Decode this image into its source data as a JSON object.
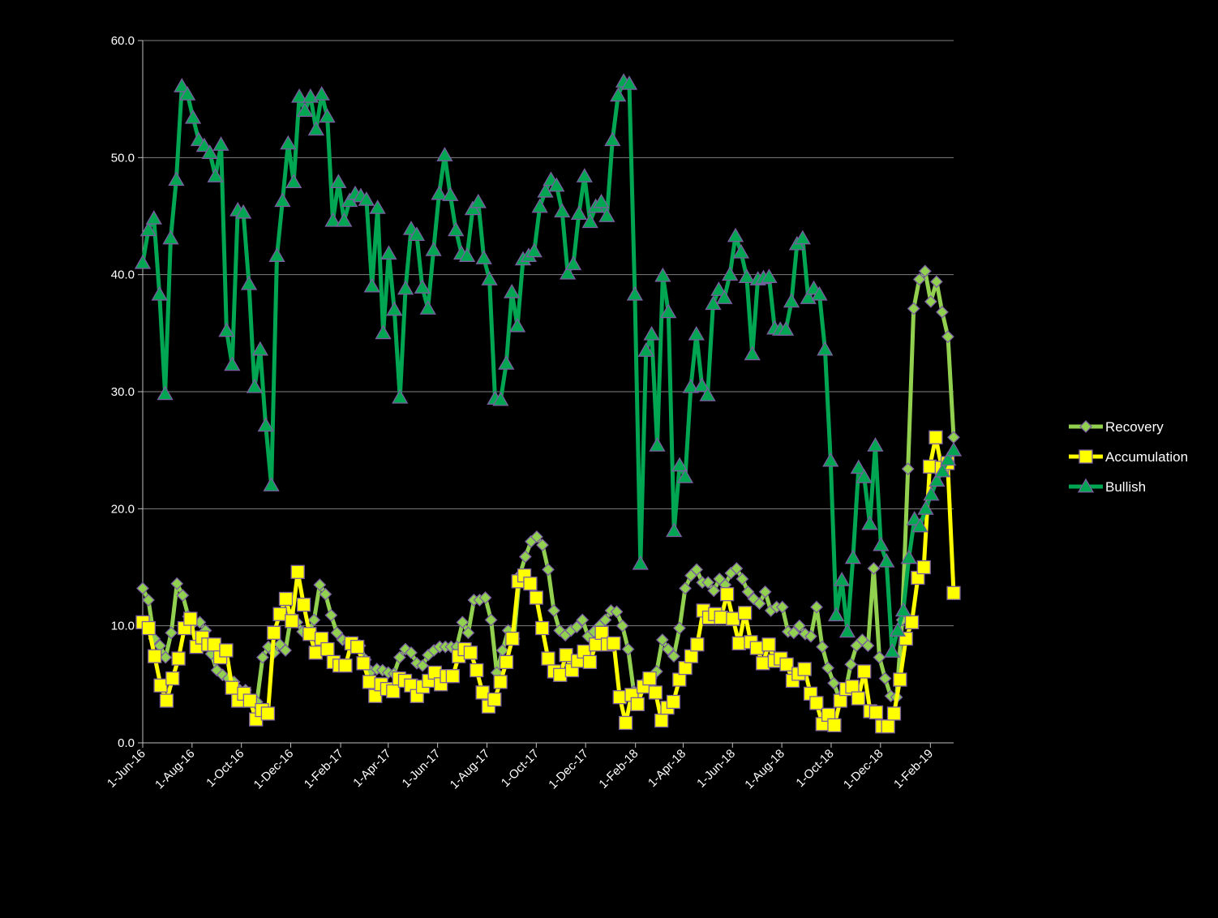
{
  "chart_data": {
    "type": "line",
    "title": "",
    "xlabel": "",
    "ylabel": "",
    "ylim": [
      0,
      60
    ],
    "y_ticks": [
      "0.0",
      "10.0",
      "20.0",
      "30.0",
      "40.0",
      "50.0",
      "60.0"
    ],
    "x_tick_labels": [
      "1-Jun-16",
      "1-Aug-16",
      "1-Oct-16",
      "1-Dec-16",
      "1-Feb-17",
      "1-Apr-17",
      "1-Jun-17",
      "1-Aug-17",
      "1-Oct-17",
      "1-Dec-17",
      "1-Feb-18",
      "1-Apr-18",
      "1-Jun-18",
      "1-Aug-18",
      "1-Oct-18",
      "1-Dec-18",
      "1-Feb-19"
    ],
    "x_tick_weeks": [
      0,
      8.7,
      17.4,
      26.1,
      34.9,
      43.3,
      52.0,
      60.7,
      69.4,
      78.1,
      86.9,
      95.3,
      104.0,
      112.7,
      121.4,
      130.1,
      138.9
    ],
    "x_range_weeks": [
      0,
      143
    ],
    "legend_position": "right",
    "grid": "horizontal",
    "series": [
      {
        "name": "Recovery",
        "color": "#92d050",
        "marker": "diamond",
        "values": [
          13.2,
          12.2,
          8.9,
          8.3,
          7.3,
          9.4,
          13.6,
          12.6,
          10.8,
          10.3,
          10.3,
          9.6,
          7.6,
          6.2,
          5.8,
          5.5,
          5.2,
          4.5,
          4.5,
          3.5,
          3.5,
          7.3,
          8.2,
          7.7,
          8.4,
          7.9,
          10.9,
          10.3,
          9.5,
          9.3,
          10.5,
          13.5,
          12.7,
          10.9,
          9.4,
          8.8,
          8.6,
          8.2,
          8.3,
          7.1,
          6.1,
          6.3,
          6.2,
          6.0,
          5.9,
          7.3,
          8.0,
          7.7,
          6.8,
          6.6,
          7.5,
          7.9,
          8.2,
          8.2,
          8.2,
          8.2,
          10.3,
          9.4,
          12.2,
          12.2,
          12.4,
          10.5,
          6.0,
          7.9,
          9.6,
          8.9,
          14.3,
          15.9,
          17.2,
          17.6,
          16.9,
          14.8,
          11.3,
          9.6,
          9.2,
          9.6,
          9.9,
          10.5,
          9.1,
          9.5,
          10.0,
          10.5,
          11.3,
          11.2,
          10.0,
          8.0,
          4.4,
          4.4,
          5.2,
          5.5,
          6.1,
          8.8,
          8.0,
          7.4,
          9.8,
          13.2,
          14.3,
          14.8,
          13.7,
          13.7,
          13.0,
          14.0,
          13.5,
          14.5,
          14.9,
          14.0,
          12.9,
          12.3,
          11.9,
          12.9,
          11.3,
          11.6,
          11.6,
          9.5,
          9.4,
          10.0,
          9.3,
          9.1,
          11.6,
          8.2,
          6.4,
          5.1,
          3.8,
          4.3,
          6.7,
          8.3,
          8.8,
          8.3,
          14.9,
          7.3,
          5.5,
          4.0,
          3.9,
          10.5,
          23.4,
          37.1,
          39.6,
          40.3,
          37.7,
          39.4,
          36.8,
          34.7,
          26.1
        ]
      },
      {
        "name": "Accumulation",
        "color": "#ffff00",
        "marker": "square",
        "values": [
          10.3,
          9.8,
          7.4,
          4.9,
          3.6,
          5.5,
          7.2,
          9.8,
          10.6,
          8.2,
          9.0,
          8.4,
          8.4,
          7.3,
          7.9,
          4.7,
          3.6,
          4.2,
          3.6,
          2.0,
          2.8,
          2.5,
          9.4,
          11.0,
          12.3,
          10.4,
          14.6,
          11.8,
          9.3,
          7.7,
          8.9,
          8.0,
          6.9,
          6.6,
          6.6,
          8.5,
          8.2,
          6.8,
          5.2,
          4.0,
          5.0,
          4.6,
          4.4,
          5.5,
          5.3,
          4.9,
          4.0,
          4.8,
          5.3,
          6.0,
          5.0,
          5.7,
          5.7,
          7.4,
          8.0,
          7.7,
          6.2,
          4.3,
          3.1,
          3.7,
          5.2,
          6.9,
          8.9,
          13.8,
          14.3,
          13.6,
          12.4,
          9.8,
          7.2,
          6.1,
          5.8,
          7.5,
          6.2,
          7.0,
          7.8,
          6.9,
          8.4,
          9.4,
          8.4,
          8.5,
          3.9,
          1.7,
          4.1,
          3.3,
          4.8,
          5.5,
          4.3,
          1.9,
          3.0,
          3.5,
          5.4,
          6.4,
          7.4,
          8.4,
          11.3,
          10.7,
          11.0,
          10.7,
          12.7,
          10.6,
          8.5,
          11.1,
          8.6,
          8.1,
          6.8,
          8.4,
          7.0,
          7.2,
          6.7,
          5.3,
          5.9,
          6.3,
          4.2,
          3.4,
          1.6,
          2.4,
          1.5,
          3.6,
          4.6,
          4.8,
          3.8,
          6.1,
          2.7,
          2.6,
          1.4,
          1.4,
          2.5,
          5.4,
          8.9,
          10.3,
          14.1,
          15.0,
          23.6,
          26.1,
          23.5,
          23.9,
          12.8
        ]
      },
      {
        "name": "Bullish",
        "color": "#00a651",
        "marker": "triangle",
        "values": [
          41.0,
          43.8,
          44.8,
          38.3,
          29.8,
          43.1,
          48.1,
          56.1,
          55.4,
          53.4,
          51.5,
          51.0,
          50.4,
          48.4,
          51.1,
          35.2,
          32.3,
          45.5,
          45.3,
          39.2,
          30.4,
          33.6,
          27.1,
          22.0,
          41.6,
          46.3,
          51.2,
          47.9,
          55.2,
          54.0,
          55.2,
          52.4,
          55.4,
          53.5,
          44.6,
          47.9,
          44.6,
          46.3,
          46.9,
          46.7,
          46.4,
          39.0,
          45.7,
          35.0,
          41.8,
          37.0,
          29.5,
          38.8,
          43.9,
          43.4,
          38.9,
          37.1,
          42.1,
          46.9,
          50.2,
          46.8,
          43.8,
          41.8,
          41.6,
          45.6,
          46.2,
          41.4,
          39.6,
          29.4,
          29.3,
          32.4,
          38.5,
          35.6,
          41.3,
          41.6,
          42.0,
          45.8,
          47.1,
          48.1,
          47.6,
          45.4,
          40.1,
          40.9,
          45.2,
          48.4,
          44.5,
          45.8,
          46.2,
          45.0,
          51.5,
          55.3,
          56.5,
          56.3,
          38.3,
          15.3,
          33.5,
          34.9,
          25.4,
          39.9,
          36.8,
          18.1,
          23.7,
          22.7,
          30.4,
          34.9,
          30.5,
          29.7,
          37.5,
          38.7,
          38.0,
          40.0,
          43.3,
          41.9,
          39.8,
          33.2,
          39.6,
          39.7,
          39.8,
          35.4,
          35.3,
          35.3,
          37.7,
          42.6,
          43.1,
          38.0,
          38.8,
          38.3,
          33.6,
          24.1,
          10.9,
          13.9,
          9.5,
          15.8,
          23.5,
          22.7,
          18.7,
          25.4,
          16.9,
          15.5,
          7.8,
          9.6,
          11.3,
          15.8,
          19.1,
          18.5,
          20.0,
          21.2,
          22.4,
          23.2,
          24.2,
          25.0
        ]
      }
    ]
  }
}
